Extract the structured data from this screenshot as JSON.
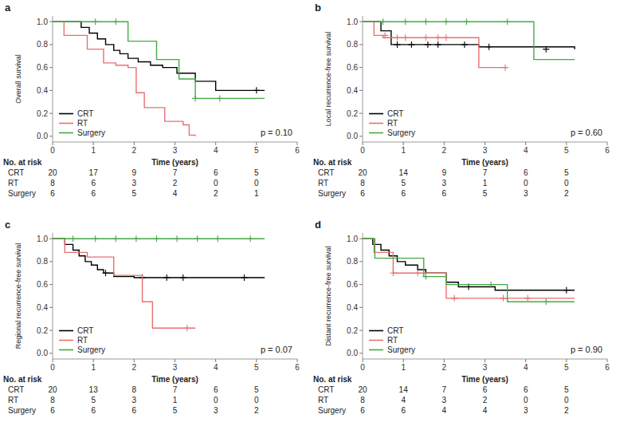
{
  "chart_data": [
    {
      "type": "step",
      "title": "a",
      "ylabel": "Overall survival",
      "xlabel": "Time (years)",
      "annotation": "p = 0.10",
      "xlim": [
        0,
        6
      ],
      "ylim": [
        -0.05,
        1.05
      ],
      "xticks": [
        0,
        1,
        2,
        3,
        4,
        5,
        6
      ],
      "yticks": [
        {
          "value": 0.0,
          "label": "0.0"
        },
        0.2,
        0.4,
        0.6,
        0.8,
        {
          "value": 1.0,
          "label": "1.0"
        }
      ],
      "grid": false,
      "legend": "lower left",
      "series": [
        {
          "name": "CRT",
          "color": "black",
          "x": [
            0,
            0.5,
            0.7,
            0.9,
            1.1,
            1.3,
            1.5,
            1.65,
            1.85,
            2.1,
            2.4,
            2.7,
            3.05,
            3.5,
            4.0,
            5.2
          ],
          "values": [
            1.0,
            1.0,
            0.95,
            0.9,
            0.85,
            0.8,
            0.75,
            0.72,
            0.68,
            0.65,
            0.62,
            0.6,
            0.55,
            0.48,
            0.4,
            0.4
          ],
          "censors": {
            "x": [
              5.0
            ],
            "y": [
              0.4
            ]
          }
        },
        {
          "name": "RT",
          "color": "#e87070",
          "x": [
            0,
            0.28,
            0.65,
            0.85,
            1.05,
            1.25,
            1.55,
            1.85,
            2.05,
            2.25,
            2.55,
            2.75,
            3.05,
            3.2,
            3.35,
            3.5
          ],
          "values": [
            1.0,
            0.88,
            0.88,
            0.76,
            0.76,
            0.64,
            0.62,
            0.6,
            0.38,
            0.25,
            0.25,
            0.13,
            0.13,
            0.1,
            0.01,
            0.0
          ],
          "censors": {
            "x": [],
            "y": []
          }
        },
        {
          "name": "Surgery",
          "color": "#44aa44",
          "x": [
            0,
            1.05,
            1.55,
            1.85,
            2.2,
            2.55,
            2.85,
            3.1,
            3.5,
            4.1,
            5.2
          ],
          "values": [
            1.0,
            1.0,
            1.0,
            0.83,
            0.83,
            0.67,
            0.67,
            0.5,
            0.33,
            0.33,
            0.33
          ],
          "censors": {
            "x": [
              1.05,
              1.55,
              3.5,
              4.1
            ],
            "y": [
              1.0,
              1.0,
              0.33,
              0.33
            ]
          }
        }
      ],
      "at_risk": {
        "label": "No. at risk",
        "x": [
          0,
          1,
          2,
          3,
          4,
          5
        ],
        "rows": [
          {
            "name": "CRT",
            "values": [
              20,
              17,
              9,
              7,
              6,
              5
            ]
          },
          {
            "name": "RT",
            "values": [
              8,
              6,
              3,
              2,
              0,
              0
            ]
          },
          {
            "name": "Surgery",
            "values": [
              6,
              6,
              5,
              4,
              2,
              1
            ]
          }
        ]
      }
    },
    {
      "type": "step",
      "title": "b",
      "ylabel": "Local recurrence-free survival",
      "xlabel": "Time (years)",
      "annotation": "p = 0.60",
      "xlim": [
        0,
        6
      ],
      "ylim": [
        -0.05,
        1.05
      ],
      "xticks": [
        0,
        1,
        2,
        3,
        4,
        5,
        6
      ],
      "yticks": [
        {
          "value": 0.0,
          "label": "0.0"
        },
        0.2,
        0.4,
        0.6,
        0.8,
        {
          "value": 1.0,
          "label": "1.0"
        }
      ],
      "grid": false,
      "legend": "lower left",
      "series": [
        {
          "name": "CRT",
          "color": "black",
          "x": [
            0,
            0.45,
            0.7,
            2.85,
            5.2
          ],
          "values": [
            1.0,
            0.92,
            0.8,
            0.78,
            0.76
          ],
          "censors": {
            "x": [
              0.85,
              1.2,
              1.6,
              1.85,
              2.5,
              3.1,
              4.5
            ],
            "y": [
              0.8,
              0.8,
              0.8,
              0.8,
              0.8,
              0.78,
              0.76
            ]
          }
        },
        {
          "name": "RT",
          "color": "#e87070",
          "x": [
            0,
            0.28,
            0.5,
            2.75,
            2.85,
            3.5
          ],
          "values": [
            1.0,
            0.88,
            0.86,
            0.86,
            0.6,
            0.6
          ],
          "censors": {
            "x": [
              0.55,
              0.85,
              1.05,
              1.55,
              1.85,
              2.05,
              3.5
            ],
            "y": [
              0.88,
              0.86,
              0.86,
              0.86,
              0.86,
              0.86,
              0.6
            ]
          }
        },
        {
          "name": "Surgery",
          "color": "#44aa44",
          "x": [
            0,
            4.15,
            4.2,
            5.2
          ],
          "values": [
            1.0,
            1.0,
            0.67,
            0.67
          ],
          "censors": {
            "x": [
              0.5,
              1.05,
              1.55,
              2.05,
              2.55,
              3.55
            ],
            "y": [
              1.0,
              1.0,
              1.0,
              1.0,
              1.0,
              1.0
            ]
          }
        }
      ],
      "at_risk": {
        "label": "No. at risk",
        "x": [
          0,
          1,
          2,
          3,
          4,
          5
        ],
        "rows": [
          {
            "name": "CRT",
            "values": [
              20,
              14,
              9,
              7,
              6,
              5
            ]
          },
          {
            "name": "RT",
            "values": [
              8,
              5,
              3,
              1,
              0,
              0
            ]
          },
          {
            "name": "Surgery",
            "values": [
              6,
              6,
              6,
              5,
              3,
              2
            ]
          }
        ]
      }
    },
    {
      "type": "step",
      "title": "c",
      "ylabel": "Regional recurrence-free survival",
      "xlabel": "Time (years)",
      "annotation": "p = 0.07",
      "xlim": [
        0,
        6
      ],
      "ylim": [
        -0.05,
        1.05
      ],
      "xticks": [
        0,
        1,
        2,
        3,
        4,
        5,
        6
      ],
      "yticks": [
        {
          "value": 0.0,
          "label": "0.0"
        },
        0.2,
        0.4,
        0.6,
        0.8,
        {
          "value": 1.0,
          "label": "1.0"
        }
      ],
      "grid": false,
      "legend": "lower left",
      "series": [
        {
          "name": "CRT",
          "color": "black",
          "x": [
            0,
            0.3,
            0.5,
            0.65,
            0.8,
            0.95,
            1.1,
            1.25,
            1.5,
            2.0,
            5.2
          ],
          "values": [
            1.0,
            0.95,
            0.9,
            0.85,
            0.8,
            0.77,
            0.73,
            0.7,
            0.67,
            0.66,
            0.66
          ],
          "censors": {
            "x": [
              1.3,
              2.2,
              2.8,
              3.2,
              4.7
            ],
            "y": [
              0.7,
              0.66,
              0.66,
              0.66,
              0.66
            ]
          }
        },
        {
          "name": "RT",
          "color": "#e87070",
          "x": [
            0,
            0.3,
            0.85,
            1.2,
            1.5,
            2.0,
            2.2,
            2.45,
            2.8,
            3.5
          ],
          "values": [
            1.0,
            0.88,
            0.84,
            0.84,
            0.68,
            0.68,
            0.45,
            0.22,
            0.22,
            0.22
          ],
          "censors": {
            "x": [
              3.3
            ],
            "y": [
              0.22
            ]
          }
        },
        {
          "name": "Surgery",
          "color": "#44aa44",
          "x": [
            0,
            5.2
          ],
          "values": [
            1.0,
            1.0
          ],
          "censors": {
            "x": [
              0.5,
              1.05,
              1.55,
              2.05,
              2.55,
              3.05,
              3.55,
              4.05,
              4.85
            ],
            "y": [
              1.0,
              1.0,
              1.0,
              1.0,
              1.0,
              1.0,
              1.0,
              1.0,
              1.0
            ]
          }
        }
      ],
      "at_risk": {
        "label": "No. at risk",
        "x": [
          0,
          1,
          2,
          3,
          4,
          5
        ],
        "rows": [
          {
            "name": "CRT",
            "values": [
              20,
              13,
              8,
              7,
              6,
              5
            ]
          },
          {
            "name": "RT",
            "values": [
              8,
              5,
              3,
              1,
              0,
              0
            ]
          },
          {
            "name": "Surgery",
            "values": [
              6,
              6,
              6,
              5,
              3,
              2
            ]
          }
        ]
      }
    },
    {
      "type": "step",
      "title": "d",
      "ylabel": "Distant recurrence-free survival",
      "xlabel": "Time (years)",
      "annotation": "p = 0.90",
      "xlim": [
        0,
        6
      ],
      "ylim": [
        -0.05,
        1.05
      ],
      "xticks": [
        0,
        1,
        2,
        3,
        4,
        5,
        6
      ],
      "yticks": [
        {
          "value": 0.0,
          "label": "0.0"
        },
        0.2,
        0.4,
        0.6,
        0.8,
        {
          "value": 1.0,
          "label": "1.0"
        }
      ],
      "grid": false,
      "legend": "lower left",
      "series": [
        {
          "name": "CRT",
          "color": "black",
          "x": [
            0,
            0.25,
            0.45,
            0.65,
            0.85,
            1.05,
            1.35,
            1.55,
            2.05,
            2.35,
            3.25,
            3.55,
            5.2
          ],
          "values": [
            1.0,
            0.95,
            0.9,
            0.85,
            0.8,
            0.77,
            0.73,
            0.7,
            0.62,
            0.58,
            0.55,
            0.55,
            0.55
          ],
          "censors": {
            "x": [
              2.6,
              5.0
            ],
            "y": [
              0.58,
              0.55
            ]
          }
        },
        {
          "name": "RT",
          "color": "#e87070",
          "x": [
            0,
            0.28,
            0.5,
            0.75,
            1.1,
            1.35,
            2.05,
            2.25,
            3.05,
            3.35,
            3.5,
            5.2
          ],
          "values": [
            1.0,
            0.88,
            0.88,
            0.7,
            0.7,
            0.7,
            0.48,
            0.48,
            0.48,
            0.48,
            0.48,
            0.48
          ],
          "censors": {
            "x": [
              0.75,
              1.35,
              2.25,
              3.45,
              4.05
            ],
            "y": [
              0.7,
              0.7,
              0.48,
              0.48,
              0.48
            ]
          }
        },
        {
          "name": "Surgery",
          "color": "#44aa44",
          "x": [
            0,
            0.3,
            0.65,
            1.5,
            2.05,
            3.25,
            3.55,
            4.35,
            4.4,
            5.2
          ],
          "values": [
            1.0,
            0.83,
            0.83,
            0.67,
            0.6,
            0.6,
            0.45,
            0.45,
            0.45,
            0.45
          ],
          "censors": {
            "x": [
              1.55,
              3.15,
              4.5
            ],
            "y": [
              0.67,
              0.6,
              0.45
            ]
          }
        }
      ],
      "at_risk": {
        "label": "No. at risk",
        "x": [
          0,
          1,
          2,
          3,
          4,
          5
        ],
        "rows": [
          {
            "name": "CRT",
            "values": [
              20,
              14,
              7,
              6,
              6,
              5
            ]
          },
          {
            "name": "RT",
            "values": [
              8,
              4,
              3,
              2,
              0,
              0
            ]
          },
          {
            "name": "Surgery",
            "values": [
              6,
              6,
              4,
              4,
              3,
              2
            ]
          }
        ]
      }
    }
  ]
}
